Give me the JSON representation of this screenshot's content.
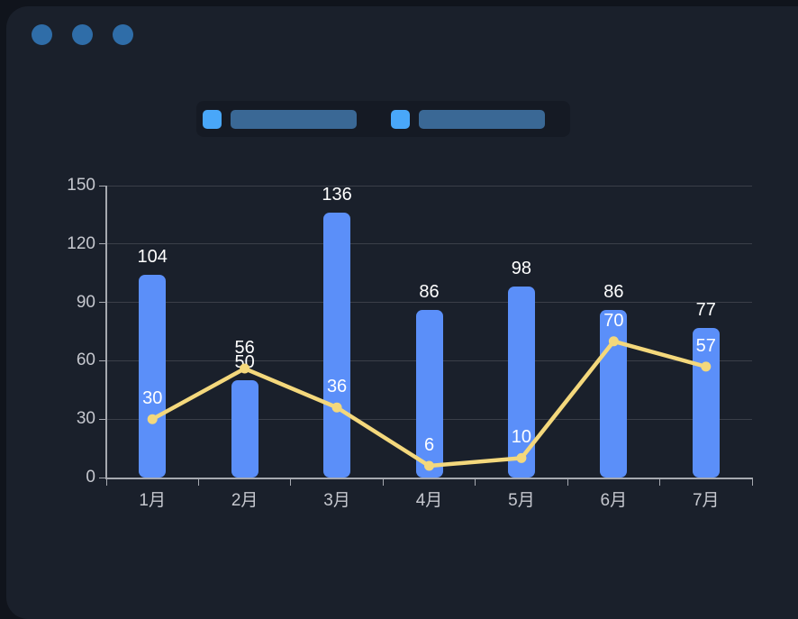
{
  "colors": {
    "backdrop": "#10141c",
    "panel": "#1a202b",
    "legend_strip": "rgba(0,0,0,0.16)"
  },
  "window": {
    "dot_count": 3,
    "dot_color": "#2f6da8"
  },
  "legend": {
    "items": [
      {
        "swatch_color": "#49a7f9",
        "label_bar_color": "#3a6895"
      },
      {
        "swatch_color": "#49a7f9",
        "label_bar_color": "#3a6895"
      }
    ]
  },
  "chart_data": {
    "type": "bar",
    "title": "",
    "xlabel": "",
    "ylabel": "",
    "categories": [
      "1月",
      "2月",
      "3月",
      "4月",
      "5月",
      "6月",
      "7月"
    ],
    "series": [
      {
        "id": "bar-series",
        "type": "bar",
        "color": "#5b8ff9",
        "values": [
          104,
          50,
          136,
          86,
          98,
          86,
          77
        ],
        "label_color": "#ffffff"
      },
      {
        "id": "line-series",
        "type": "line",
        "color": "#f4d87c",
        "values": [
          30,
          56,
          36,
          6,
          10,
          70,
          57
        ],
        "label_color": "#ffffff"
      }
    ],
    "ylim": [
      0,
      150
    ],
    "yticks": [
      0,
      30,
      60,
      90,
      120,
      150
    ],
    "grid": true,
    "legend_position": "top",
    "axis_color": "#a6a9b0",
    "grid_color": "#3b3f49",
    "tick_label_color": "#c5c7ce"
  }
}
